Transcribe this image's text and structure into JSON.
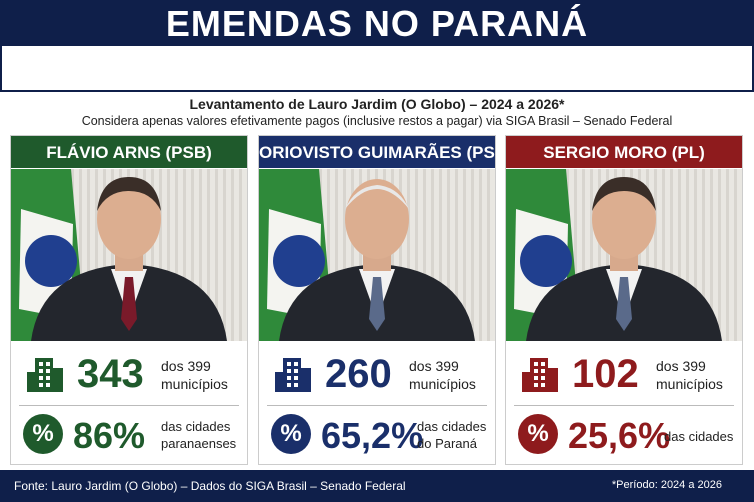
{
  "header": {
    "title": "EMENDAS NO PARANÁ"
  },
  "subtitle": {
    "line1": "Levantamento de Lauro Jardim (O Globo) – 2024 a 2026*",
    "line2": "Considera apenas valores efetivamente pagos (inclusive restos a pagar) via SIGA Brasil – Senado Federal"
  },
  "cards": [
    {
      "name": "FLÁVIO ARNS (PSB)",
      "color": "#1f5a2c",
      "count": "343",
      "count_note1": "dos 399",
      "count_note2": "municípios",
      "percent_icon": "%",
      "percent": "86%",
      "percent_note1": "das cidades",
      "percent_note2": "paranaenses"
    },
    {
      "name": "ORIOVISTO GUIMARÃES (PSDB)",
      "color": "#1a2f6a",
      "count": "260",
      "count_note1": "dos 399",
      "count_note2": "municípios",
      "percent_icon": "%",
      "percent": "65,2%",
      "percent_note1": "das cidades",
      "percent_note2": "do Paraná"
    },
    {
      "name": "SERGIO MORO (PL)",
      "color": "#8e1b1d",
      "count": "102",
      "count_note1": "dos 399",
      "count_note2": "municípios",
      "percent_icon": "%",
      "percent": "25,6%",
      "percent_note1": "das cidades"
    }
  ],
  "footer": {
    "source": "Fonte: Lauro Jardim (O Globo) – Dados do SIGA Brasil – Senado Federal",
    "period": "*Período: 2024 a 2026"
  }
}
